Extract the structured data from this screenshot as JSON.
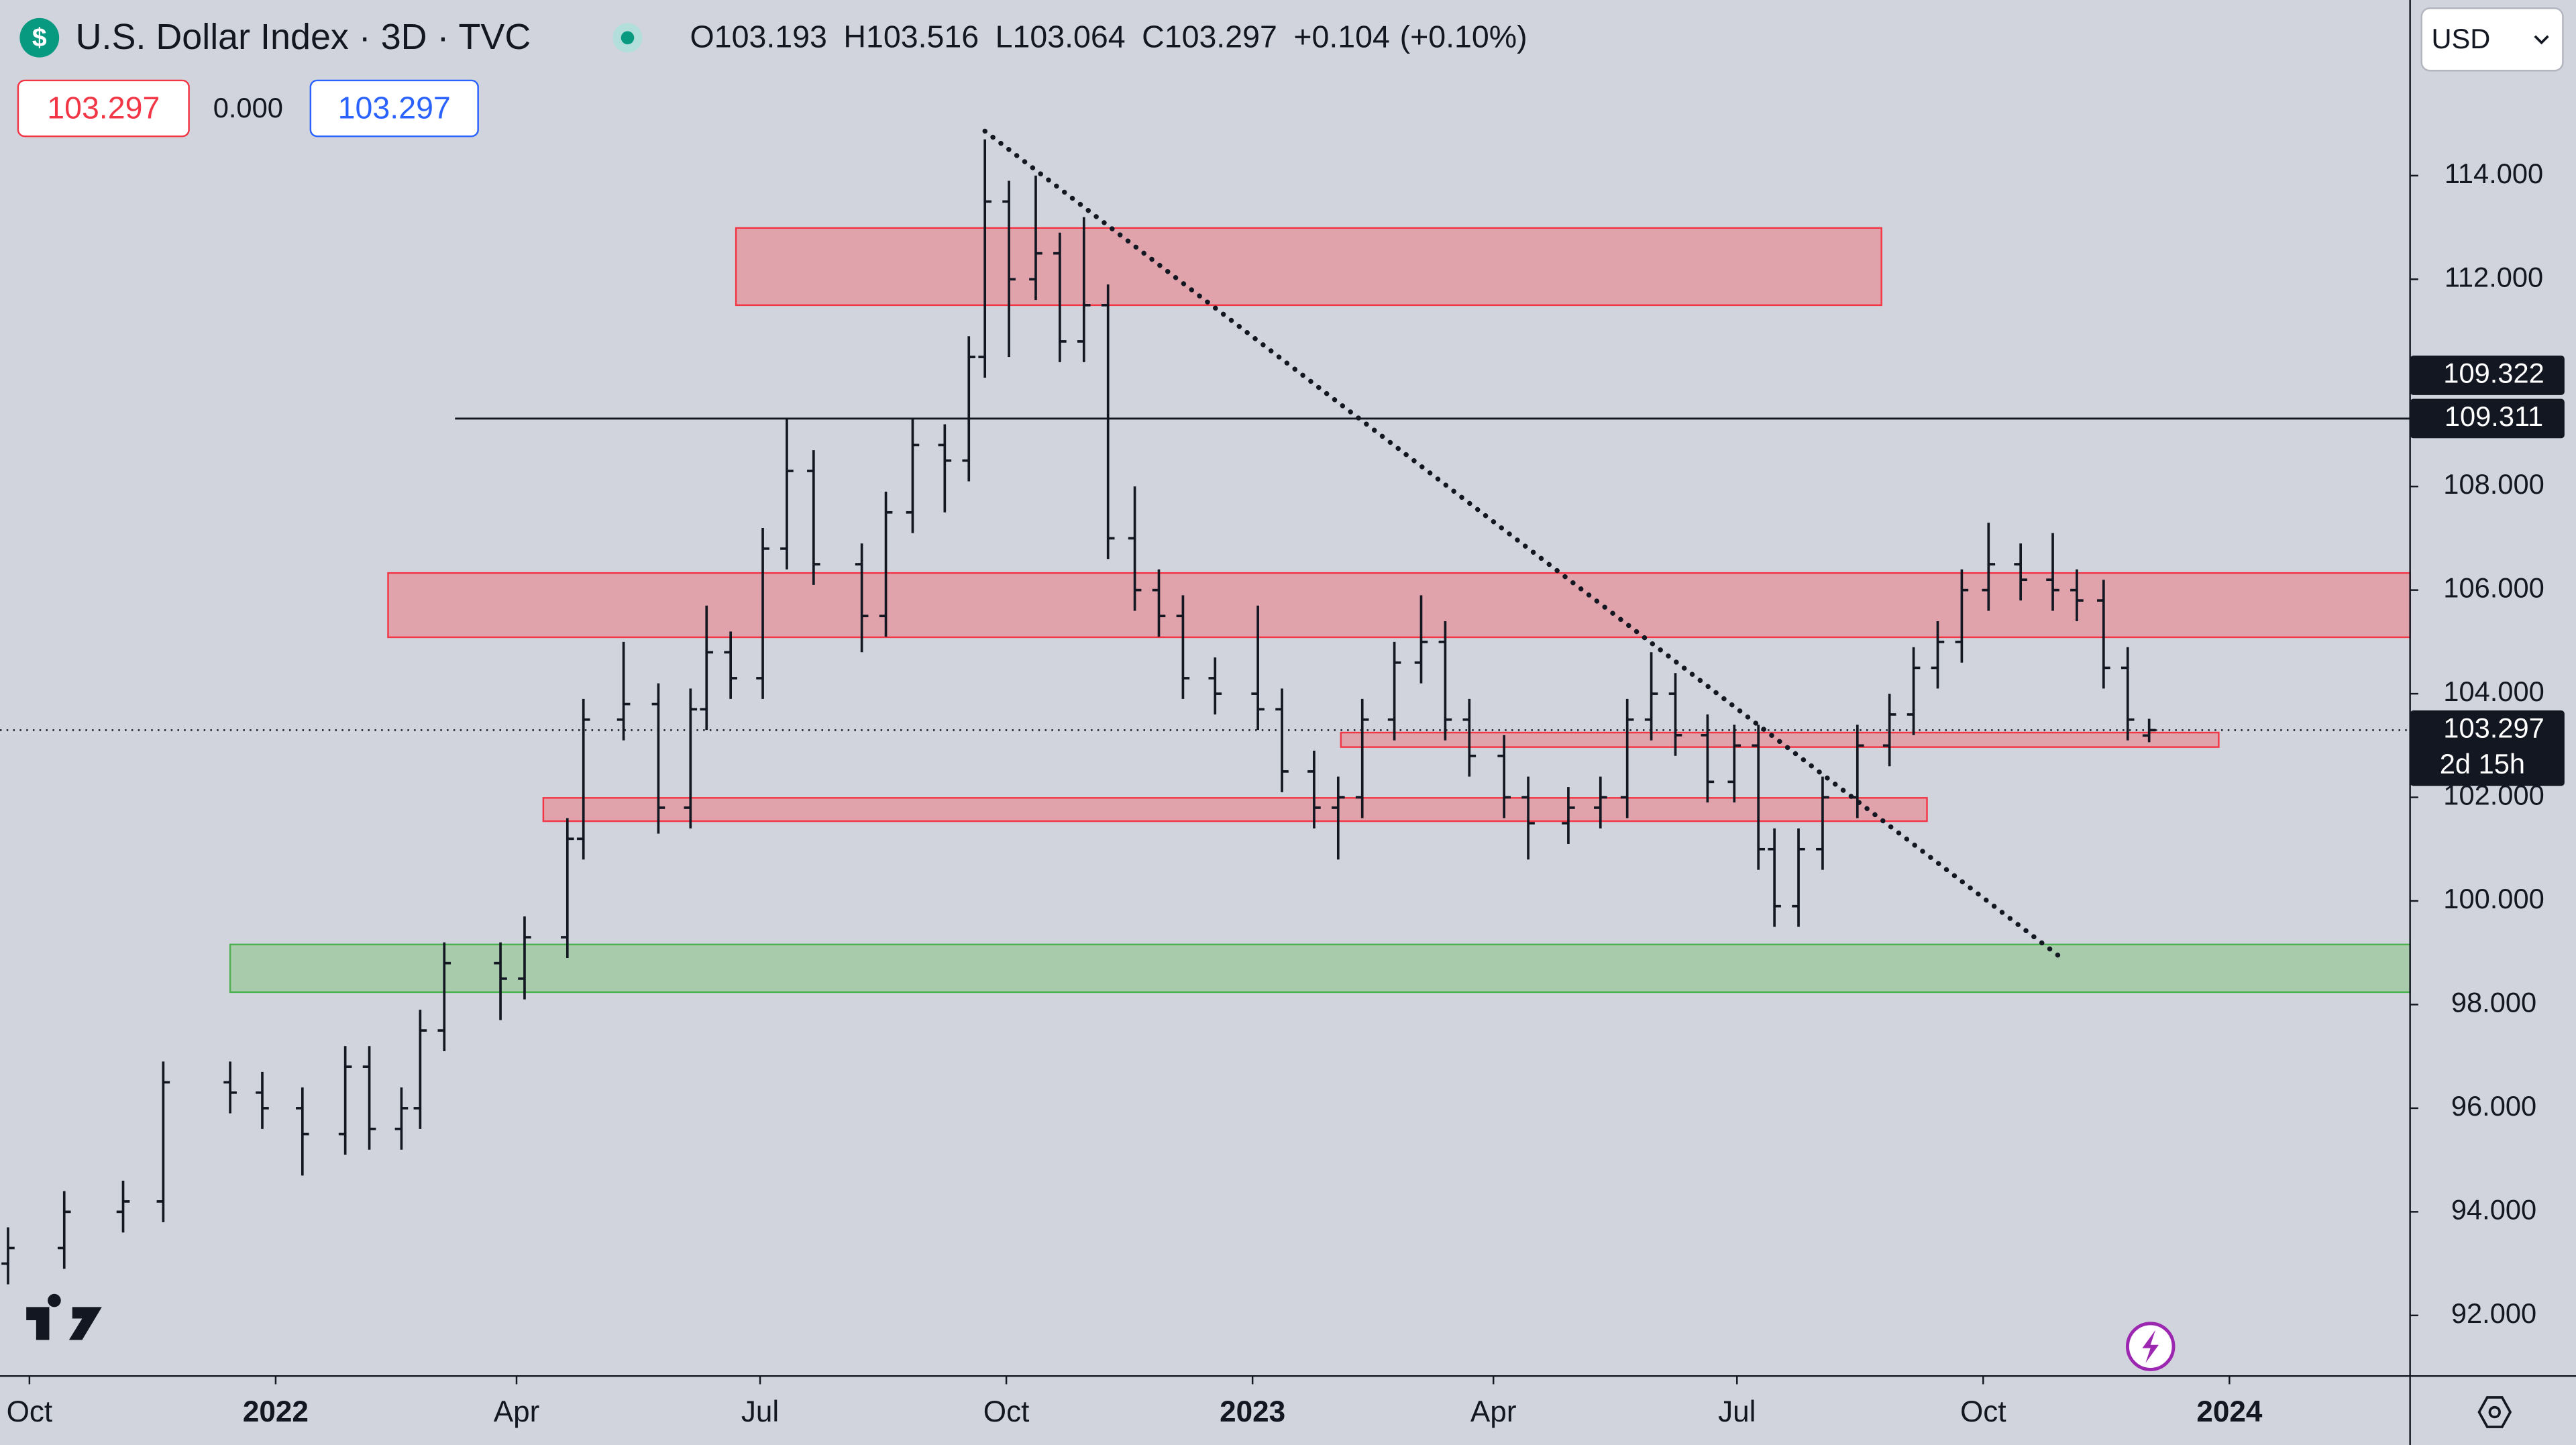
{
  "chart_data": {
    "type": "ohlc",
    "title": "U.S. Dollar Index · 3D · TVC",
    "logo": "$",
    "ohlc_header": [
      {
        "label": "O",
        "value": 103.193
      },
      {
        "label": "H",
        "value": 103.516
      },
      {
        "label": "L",
        "value": 103.064
      },
      {
        "label": "C",
        "value": 103.297
      }
    ],
    "change": "+0.104",
    "change_pct": "(+0.10%)",
    "bid": "103.297",
    "spread": "0.000",
    "ask": "103.297",
    "currency": "USD",
    "countdown": "2d 15h",
    "xlim": [
      -11,
      889.5
    ],
    "xticks": [
      {
        "value": 0,
        "label": "Oct"
      },
      {
        "value": 92,
        "label": "2022"
      },
      {
        "value": 182,
        "label": "Apr"
      },
      {
        "value": 273,
        "label": "Jul"
      },
      {
        "value": 365,
        "label": "Oct"
      },
      {
        "value": 457,
        "label": "2023"
      },
      {
        "value": 547,
        "label": "Apr"
      },
      {
        "value": 638,
        "label": "Jul"
      },
      {
        "value": 730,
        "label": "Oct"
      },
      {
        "value": 822,
        "label": "2024"
      }
    ],
    "ylim": [
      90.83,
      117.39
    ],
    "yticks": [
      {
        "value": 92,
        "label": "92.000"
      },
      {
        "value": 94,
        "label": "94.000"
      },
      {
        "value": 96,
        "label": "96.000"
      },
      {
        "value": 98,
        "label": "98.000"
      },
      {
        "value": 100,
        "label": "100.000"
      },
      {
        "value": 102,
        "label": "102.000"
      },
      {
        "value": 104,
        "label": "104.000"
      },
      {
        "value": 106,
        "label": "106.000"
      },
      {
        "value": 108,
        "label": "108.000"
      },
      {
        "value": 110,
        "label": "110.000"
      },
      {
        "value": 112,
        "label": "112.000"
      },
      {
        "value": 114,
        "label": "114.000"
      }
    ],
    "color": "#131722",
    "x": [
      -8,
      13,
      35,
      50,
      75,
      87,
      102,
      118,
      127,
      139,
      146,
      155,
      176,
      185,
      201,
      207,
      222,
      235,
      247,
      253,
      262,
      274,
      283,
      293,
      311,
      320,
      330,
      342,
      351,
      357,
      366,
      376,
      385,
      394,
      403,
      413,
      422,
      431,
      443,
      459,
      468,
      480,
      489,
      498,
      510,
      520,
      529,
      538,
      551,
      560,
      575,
      587,
      597,
      606,
      615,
      627,
      637,
      646,
      652,
      661,
      670,
      683,
      695,
      704,
      713,
      722,
      732,
      744,
      756,
      765,
      775,
      784,
      792
    ],
    "open": [
      93.0,
      93.3,
      94.0,
      94.2,
      96.5,
      96.3,
      96.0,
      95.5,
      96.8,
      95.6,
      96.0,
      97.5,
      98.8,
      98.5,
      99.3,
      101.2,
      103.5,
      103.8,
      101.8,
      103.7,
      104.8,
      104.3,
      106.8,
      108.3,
      106.5,
      105.5,
      107.5,
      108.8,
      108.5,
      110.5,
      113.5,
      112.0,
      112.5,
      110.8,
      111.5,
      107.0,
      106.0,
      105.5,
      104.3,
      104.0,
      103.7,
      102.5,
      101.8,
      102.0,
      103.5,
      104.6,
      105.0,
      103.5,
      102.8,
      102.0,
      101.5,
      101.8,
      102.0,
      103.5,
      104.0,
      103.2,
      102.3,
      103.0,
      101.0,
      99.9,
      101.0,
      102.0,
      103.0,
      103.6,
      104.5,
      105.0,
      106.0,
      106.5,
      106.2,
      106.0,
      105.8,
      104.5,
      103.193
    ],
    "high": [
      93.7,
      94.4,
      94.6,
      96.9,
      96.9,
      96.7,
      96.4,
      97.2,
      97.2,
      96.4,
      97.9,
      99.2,
      99.2,
      99.7,
      101.6,
      103.9,
      105.0,
      104.2,
      104.1,
      105.7,
      105.2,
      107.2,
      109.3,
      108.7,
      106.9,
      107.9,
      109.3,
      109.2,
      110.9,
      114.7,
      113.9,
      114.0,
      112.9,
      113.2,
      111.9,
      108.0,
      106.4,
      105.9,
      104.7,
      105.7,
      104.1,
      102.9,
      102.4,
      103.9,
      105.0,
      105.9,
      105.4,
      103.9,
      103.2,
      102.4,
      102.2,
      102.4,
      103.9,
      104.8,
      104.4,
      103.6,
      103.4,
      103.4,
      101.4,
      101.4,
      102.4,
      103.4,
      104.0,
      104.9,
      105.4,
      106.4,
      107.3,
      106.9,
      107.1,
      106.4,
      106.2,
      104.9,
      103.516
    ],
    "low": [
      92.6,
      92.9,
      93.6,
      93.8,
      95.9,
      95.6,
      94.7,
      95.1,
      95.2,
      95.2,
      95.6,
      97.1,
      97.7,
      98.1,
      98.9,
      100.8,
      103.1,
      101.3,
      101.4,
      103.3,
      103.9,
      103.9,
      106.4,
      106.1,
      104.8,
      105.1,
      107.1,
      107.5,
      108.1,
      110.1,
      110.5,
      111.6,
      110.4,
      110.4,
      106.6,
      105.6,
      105.1,
      103.9,
      103.6,
      103.3,
      102.1,
      101.4,
      100.8,
      101.6,
      103.1,
      104.2,
      103.1,
      102.4,
      101.6,
      100.8,
      101.1,
      101.4,
      101.6,
      103.1,
      102.8,
      101.9,
      101.9,
      100.6,
      99.5,
      99.5,
      100.6,
      101.6,
      102.6,
      103.2,
      104.1,
      104.6,
      105.6,
      105.8,
      105.6,
      105.4,
      104.1,
      103.1,
      103.064
    ],
    "close": [
      93.3,
      94.0,
      94.2,
      96.5,
      96.3,
      96.0,
      95.5,
      96.8,
      95.6,
      96.0,
      97.5,
      98.8,
      98.5,
      99.3,
      101.2,
      103.5,
      103.8,
      101.8,
      103.7,
      104.8,
      104.3,
      106.8,
      108.3,
      106.5,
      105.5,
      107.5,
      108.8,
      108.5,
      110.5,
      113.5,
      112.0,
      112.5,
      110.8,
      111.5,
      107.0,
      106.0,
      105.5,
      104.3,
      104.0,
      103.7,
      102.5,
      101.8,
      102.0,
      103.5,
      104.6,
      105.0,
      103.5,
      102.8,
      102.0,
      101.5,
      101.8,
      102.0,
      103.5,
      104.0,
      103.2,
      102.3,
      103.0,
      101.0,
      99.9,
      101.0,
      102.0,
      103.0,
      103.6,
      104.5,
      105.0,
      106.0,
      106.5,
      106.2,
      106.0,
      105.8,
      104.5,
      103.5,
      103.297
    ],
    "zones": [
      {
        "x": [
          264,
          692
        ],
        "y": [
          111.5,
          112.99
        ],
        "color": "#e0a3ab"
      },
      {
        "x": [
          134,
          889.5
        ],
        "y": [
          105.09,
          106.33
        ],
        "color": "#e0a3ab"
      },
      {
        "x": [
          490,
          818
        ],
        "y": [
          102.97,
          103.25
        ],
        "color": "#e0a3ab"
      },
      {
        "x": [
          192,
          709
        ],
        "y": [
          101.54,
          101.99
        ],
        "color": "#e0a3ab"
      },
      {
        "x": [
          75,
          889.5
        ],
        "y": [
          98.24,
          99.16
        ],
        "color": "#a8ccab"
      }
    ],
    "hline": {
      "x": [
        159,
        889.5
      ],
      "y": 109.311
    },
    "trendline": {
      "x": [
        357,
        759
      ],
      "y": [
        114.86,
        98.91
      ]
    },
    "last_price": 103.297,
    "price_labels": [
      109.322,
      109.311,
      103.297
    ]
  }
}
